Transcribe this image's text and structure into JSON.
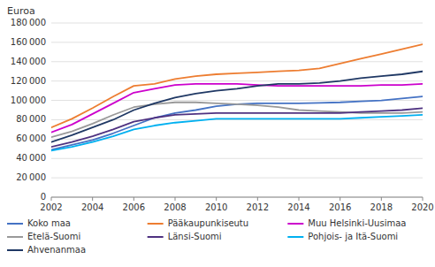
{
  "chart_data": {
    "type": "line",
    "y_label": "Euroa",
    "x": [
      2002,
      2003,
      2004,
      2005,
      2006,
      2007,
      2008,
      2009,
      2010,
      2011,
      2012,
      2013,
      2014,
      2015,
      2016,
      2017,
      2018,
      2019,
      2020
    ],
    "series": [
      {
        "name": "Koko maa",
        "color": "#4472C4",
        "values": [
          49000,
          54000,
          59000,
          66000,
          74000,
          82000,
          87000,
          90000,
          94000,
          96000,
          97000,
          97000,
          97000,
          97500,
          98000,
          99000,
          100000,
          102000,
          104000
        ]
      },
      {
        "name": "Pääkaupunkiseutu",
        "color": "#ED7D31",
        "values": [
          72000,
          81000,
          92000,
          104000,
          115000,
          117000,
          122000,
          125000,
          127000,
          128000,
          129000,
          130000,
          131000,
          133000,
          138000,
          143000,
          148000,
          153000,
          158000
        ]
      },
      {
        "name": "Muu Helsinki-Uusimaa",
        "color": "#CC00CC",
        "values": [
          67000,
          75000,
          86000,
          97000,
          108000,
          112000,
          116000,
          117000,
          117000,
          117000,
          116000,
          115000,
          115000,
          115000,
          115000,
          115000,
          116000,
          116000,
          117000
        ]
      },
      {
        "name": "Etelä-Suomi",
        "color": "#999999",
        "values": [
          62000,
          68000,
          76000,
          85000,
          93000,
          96000,
          98000,
          98000,
          97000,
          96000,
          95000,
          93000,
          90000,
          89000,
          88000,
          87000,
          87000,
          87000,
          88000
        ]
      },
      {
        "name": "Länsi-Suomi",
        "color": "#4F3281",
        "values": [
          52000,
          57000,
          63000,
          70000,
          78000,
          82000,
          85000,
          86000,
          87000,
          87000,
          87000,
          87000,
          87000,
          87000,
          87000,
          88000,
          89000,
          90000,
          92000
        ]
      },
      {
        "name": "Pohjois- ja Itä-Suomi",
        "color": "#00B0F0",
        "values": [
          48000,
          52000,
          57000,
          63000,
          70000,
          74000,
          77000,
          79000,
          81000,
          81000,
          81000,
          81000,
          81000,
          81000,
          81000,
          82000,
          83000,
          84000,
          85000
        ]
      },
      {
        "name": "Ahvenanmaa",
        "color": "#1F3864",
        "values": [
          57000,
          64000,
          72000,
          80000,
          90000,
          97000,
          103000,
          107000,
          110000,
          112000,
          115000,
          117000,
          117000,
          118000,
          120000,
          123000,
          125000,
          127000,
          130000
        ]
      }
    ],
    "xlim": [
      2002,
      2020
    ],
    "xticks": [
      2002,
      2004,
      2006,
      2008,
      2010,
      2012,
      2014,
      2016,
      2018,
      2020
    ],
    "ylim": [
      0,
      180000
    ],
    "yticks": [
      0,
      {
        "value": 20000,
        "label": "20 000"
      },
      {
        "value": 40000,
        "label": "40 000"
      },
      {
        "value": 60000,
        "label": "60 000"
      },
      {
        "value": 80000,
        "label": "80 000"
      },
      {
        "value": 100000,
        "label": "100 000"
      },
      {
        "value": 120000,
        "label": "120 000"
      },
      {
        "value": 140000,
        "label": "140 000"
      },
      {
        "value": 160000,
        "label": "160 000"
      },
      {
        "value": 180000,
        "label": "180 000"
      }
    ],
    "grid": true,
    "legend": "bottom"
  }
}
